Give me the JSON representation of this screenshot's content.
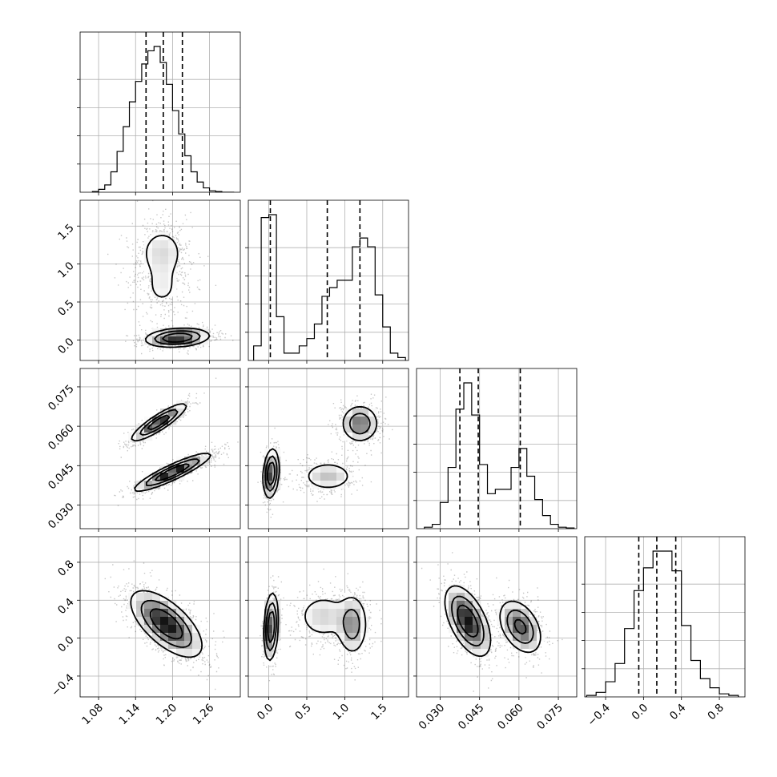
{
  "chart_data": {
    "type": "corner",
    "grid": true,
    "parameters": [
      {
        "range": [
          1.05,
          1.31
        ],
        "ticks": [
          1.08,
          1.14,
          1.2,
          1.26
        ],
        "tick_labels": [
          "1.08",
          "1.14",
          "1.20",
          "1.26"
        ],
        "quantiles": [
          1.157,
          1.185,
          1.216
        ],
        "histogram": {
          "edges": [
            1.07,
            1.08,
            1.09,
            1.1,
            1.11,
            1.12,
            1.13,
            1.14,
            1.15,
            1.16,
            1.17,
            1.18,
            1.19,
            1.2,
            1.21,
            1.22,
            1.23,
            1.24,
            1.25,
            1.26,
            1.27,
            1.28,
            1.29,
            1.3
          ],
          "counts": [
            0.005,
            0.02,
            0.05,
            0.14,
            0.28,
            0.45,
            0.62,
            0.76,
            0.88,
            0.97,
            1.0,
            0.89,
            0.74,
            0.56,
            0.4,
            0.25,
            0.14,
            0.07,
            0.03,
            0.01,
            0.005,
            0.0,
            0.0
          ]
        }
      },
      {
        "range": [
          -0.27,
          1.84
        ],
        "ticks": [
          0.0,
          0.5,
          1.0,
          1.5
        ],
        "tick_labels": [
          "0.0",
          "0.5",
          "1.0",
          "1.5"
        ],
        "quantiles": [
          0.02,
          0.77,
          1.2
        ],
        "histogram": {
          "edges": [
            -0.2,
            -0.1,
            0.0,
            0.1,
            0.2,
            0.3,
            0.4,
            0.5,
            0.6,
            0.7,
            0.8,
            0.9,
            1.0,
            1.1,
            1.2,
            1.3,
            1.4,
            1.5,
            1.6,
            1.7,
            1.8
          ],
          "counts": [
            0.1,
            0.98,
            1.0,
            0.3,
            0.05,
            0.05,
            0.1,
            0.15,
            0.25,
            0.44,
            0.5,
            0.55,
            0.55,
            0.78,
            0.84,
            0.78,
            0.45,
            0.23,
            0.05,
            0.02
          ]
        }
      },
      {
        "range": [
          0.021,
          0.082
        ],
        "ticks": [
          0.03,
          0.045,
          0.06,
          0.075
        ],
        "tick_labels": [
          "0.030",
          "0.045",
          "0.060",
          "0.075"
        ],
        "quantiles": [
          0.0375,
          0.0445,
          0.0605
        ],
        "histogram": {
          "edges": [
            0.024,
            0.027,
            0.03,
            0.033,
            0.036,
            0.039,
            0.042,
            0.045,
            0.048,
            0.051,
            0.054,
            0.057,
            0.06,
            0.063,
            0.066,
            0.069,
            0.072,
            0.075,
            0.078,
            0.081
          ],
          "counts": [
            0.01,
            0.03,
            0.18,
            0.42,
            0.82,
            1.0,
            0.78,
            0.44,
            0.24,
            0.27,
            0.27,
            0.42,
            0.55,
            0.36,
            0.2,
            0.09,
            0.03,
            0.01,
            0.005
          ]
        }
      },
      {
        "range": [
          -0.62,
          1.07
        ],
        "ticks": [
          -0.4,
          0.0,
          0.4,
          0.8
        ],
        "tick_labels": [
          "−0.4",
          "0.0",
          "0.4",
          "0.8"
        ],
        "quantiles": [
          -0.05,
          0.14,
          0.34
        ],
        "histogram": {
          "edges": [
            -0.6,
            -0.5,
            -0.4,
            -0.3,
            -0.2,
            -0.1,
            0.0,
            0.1,
            0.2,
            0.3,
            0.4,
            0.5,
            0.6,
            0.7,
            0.8,
            0.9,
            1.0
          ],
          "counts": [
            0.01,
            0.03,
            0.1,
            0.22,
            0.45,
            0.7,
            0.85,
            0.96,
            0.96,
            0.83,
            0.47,
            0.24,
            0.12,
            0.06,
            0.02,
            0.01
          ]
        }
      }
    ],
    "pairs": [
      {
        "x": 0,
        "y": 1,
        "modes": [
          {
            "cx": 1.183,
            "cy": 1.15,
            "sx": 0.022,
            "sy": 0.2,
            "rho": 0.0,
            "w": 0.33
          },
          {
            "cx": 1.183,
            "cy": 0.68,
            "sx": 0.02,
            "sy": 0.18,
            "rho": 0.0,
            "w": 0.17
          },
          {
            "cx": 1.208,
            "cy": 0.03,
            "sx": 0.025,
            "sy": 0.06,
            "rho": 0.2,
            "w": 0.5
          }
        ]
      },
      {
        "x": 0,
        "y": 2,
        "modes": [
          {
            "cx": 1.2,
            "cy": 0.0425,
            "sx": 0.03,
            "sy": 0.0035,
            "rho": 0.9,
            "w": 0.58
          },
          {
            "cx": 1.178,
            "cy": 0.0615,
            "sx": 0.022,
            "sy": 0.0035,
            "rho": 0.88,
            "w": 0.42
          }
        ]
      },
      {
        "x": 1,
        "y": 2,
        "modes": [
          {
            "cx": 0.03,
            "cy": 0.042,
            "sx": 0.05,
            "sy": 0.0045,
            "rho": 0.2,
            "w": 0.34
          },
          {
            "cx": 0.78,
            "cy": 0.041,
            "sx": 0.18,
            "sy": 0.003,
            "rho": 0.0,
            "w": 0.26
          },
          {
            "cx": 1.2,
            "cy": 0.061,
            "sx": 0.12,
            "sy": 0.0035,
            "rho": 0.0,
            "w": 0.4
          }
        ]
      },
      {
        "x": 0,
        "y": 3,
        "modes": [
          {
            "cx": 1.19,
            "cy": 0.15,
            "sx": 0.028,
            "sy": 0.17,
            "rho": -0.65,
            "w": 1.0
          }
        ]
      },
      {
        "x": 1,
        "y": 3,
        "modes": [
          {
            "cx": 0.03,
            "cy": 0.12,
            "sx": 0.045,
            "sy": 0.17,
            "rho": 0.2,
            "w": 0.34
          },
          {
            "cx": 0.72,
            "cy": 0.23,
            "sx": 0.2,
            "sy": 0.14,
            "rho": 0.0,
            "w": 0.3
          },
          {
            "cx": 1.1,
            "cy": 0.14,
            "sx": 0.1,
            "sy": 0.16,
            "rho": 0.0,
            "w": 0.36
          }
        ]
      },
      {
        "x": 2,
        "y": 3,
        "modes": [
          {
            "cx": 0.0405,
            "cy": 0.18,
            "sx": 0.0042,
            "sy": 0.18,
            "rho": -0.55,
            "w": 0.62
          },
          {
            "cx": 0.0605,
            "cy": 0.12,
            "sx": 0.004,
            "sy": 0.14,
            "rho": -0.4,
            "w": 0.38
          }
        ]
      }
    ]
  }
}
